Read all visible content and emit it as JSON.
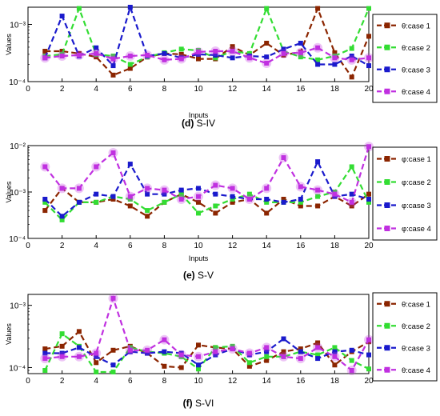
{
  "colors": {
    "case1": "#8b2500",
    "case2": "#33dd33",
    "case3": "#1a1acc",
    "case4": "#c030e0"
  },
  "chart_data": [
    {
      "type": "line",
      "caption_letter": "(d)",
      "caption_text": "S-IV",
      "xlabel": "Inputs",
      "ylabel": "Values",
      "yscale": "log",
      "ylim": [
        0.0001,
        0.002
      ],
      "xlim": [
        0,
        20
      ],
      "x_ticks": [
        0,
        2,
        4,
        6,
        8,
        10,
        12,
        14,
        16,
        18,
        20
      ],
      "y_ticks": [
        {
          "value": 0.001,
          "label": "10⁻³"
        },
        {
          "value": 0.0001,
          "label": "10⁻⁴"
        }
      ],
      "legend_position": "right",
      "x": [
        1,
        2,
        3,
        4,
        5,
        6,
        7,
        8,
        9,
        10,
        11,
        12,
        13,
        14,
        15,
        16,
        17,
        18,
        19,
        20
      ],
      "series": [
        {
          "name": "θ:case 1",
          "color_key": "case1",
          "values": [
            0.00034,
            0.00034,
            0.00031,
            0.00027,
            0.00013,
            0.00017,
            0.00027,
            0.00031,
            0.0003,
            0.00025,
            0.00025,
            0.00041,
            0.00029,
            0.00047,
            0.00029,
            0.00033,
            0.0019,
            0.00032,
            0.00012,
            0.00062
          ]
        },
        {
          "name": "θ:case 2",
          "color_key": "case2",
          "values": [
            0.00028,
            0.0003,
            0.0019,
            0.0003,
            0.00028,
            0.0002,
            0.00027,
            0.00032,
            0.00037,
            0.00035,
            0.00026,
            0.00034,
            0.00031,
            0.0019,
            0.00034,
            0.00027,
            0.00024,
            0.00028,
            0.00038,
            0.0019
          ]
        },
        {
          "name": "θ:case 3",
          "color_key": "case3",
          "values": [
            0.00026,
            0.0014,
            0.00028,
            0.00039,
            0.00019,
            0.002,
            0.00028,
            0.00031,
            0.00026,
            0.0003,
            0.00029,
            0.00026,
            0.00028,
            0.00027,
            0.00037,
            0.00047,
            0.0002,
            0.0002,
            0.00028,
            0.00019
          ]
        },
        {
          "name": "θ:case 4",
          "color_key": "case4",
          "values": [
            0.00026,
            0.00028,
            0.00029,
            0.00031,
            0.00025,
            0.00028,
            0.00029,
            0.00024,
            0.00025,
            0.00033,
            0.00034,
            0.00034,
            0.00026,
            0.00021,
            0.00031,
            0.00032,
            0.00039,
            0.00026,
            0.00024,
            0.00026
          ]
        }
      ]
    },
    {
      "type": "line",
      "caption_letter": "(e)",
      "caption_text": "S-V",
      "xlabel": "Inputs",
      "ylabel": "Values",
      "yscale": "log",
      "ylim": [
        0.0001,
        0.01
      ],
      "xlim": [
        0,
        20
      ],
      "x_ticks": [
        0,
        2,
        4,
        6,
        8,
        10,
        12,
        14,
        16,
        18,
        20
      ],
      "y_ticks": [
        {
          "value": 0.01,
          "label": "10⁻²"
        },
        {
          "value": 0.001,
          "label": "10⁻³"
        },
        {
          "value": 0.0001,
          "label": "10⁻⁴"
        }
      ],
      "legend_position": "right",
      "x": [
        1,
        2,
        3,
        4,
        5,
        6,
        7,
        8,
        9,
        10,
        11,
        12,
        13,
        14,
        15,
        16,
        17,
        18,
        19,
        20
      ],
      "series": [
        {
          "name": "φ:case 1",
          "color_key": "case1",
          "values": [
            0.0004,
            0.0012,
            0.0006,
            0.0006,
            0.0007,
            0.0005,
            0.0003,
            0.0006,
            0.0009,
            0.0006,
            0.00035,
            0.0006,
            0.0007,
            0.00035,
            0.0007,
            0.0005,
            0.0005,
            0.0008,
            0.0005,
            0.0009
          ]
        },
        {
          "name": "φ:case 2",
          "color_key": "case2",
          "values": [
            0.0006,
            0.00025,
            0.0006,
            0.0006,
            0.0008,
            0.0007,
            0.0004,
            0.0006,
            0.0009,
            0.00035,
            0.0005,
            0.0007,
            0.0009,
            0.0006,
            0.0006,
            0.0006,
            0.0008,
            0.001,
            0.0035,
            0.0006
          ]
        },
        {
          "name": "φ:case 3",
          "color_key": "case3",
          "values": [
            0.0007,
            0.0003,
            0.0006,
            0.0009,
            0.0008,
            0.004,
            0.0009,
            0.0009,
            0.0011,
            0.0012,
            0.0009,
            0.0008,
            0.0007,
            0.0007,
            0.0006,
            0.0007,
            0.0045,
            0.0008,
            0.0009,
            0.0007
          ]
        },
        {
          "name": "φ:case 4",
          "color_key": "case4",
          "values": [
            0.0035,
            0.0012,
            0.0012,
            0.0035,
            0.007,
            0.0008,
            0.0012,
            0.0011,
            0.0007,
            0.0008,
            0.0014,
            0.0012,
            0.0007,
            0.0012,
            0.0055,
            0.0013,
            0.0011,
            0.0009,
            0.0006,
            0.0095
          ]
        }
      ]
    },
    {
      "type": "line",
      "caption_letter": "(f)",
      "caption_text": "S-VI",
      "xlabel": "",
      "ylabel": "Values",
      "yscale": "log",
      "ylim": [
        8e-05,
        0.0015
      ],
      "xlim": [
        0,
        20
      ],
      "x_ticks": [
        0,
        2,
        4,
        6,
        8,
        10,
        12,
        14,
        16,
        18,
        20
      ],
      "y_ticks": [
        {
          "value": 0.001,
          "label": "10⁻³"
        },
        {
          "value": 0.0001,
          "label": "10⁻⁴"
        }
      ],
      "legend_position": "right",
      "x": [
        1,
        2,
        3,
        4,
        5,
        6,
        7,
        8,
        9,
        10,
        11,
        12,
        13,
        14,
        15,
        16,
        17,
        18,
        19,
        20
      ],
      "series": [
        {
          "name": "θ:case 1",
          "color_key": "case1",
          "values": [
            0.0002,
            0.00022,
            0.00038,
            0.00012,
            0.00019,
            0.00022,
            0.00017,
            0.000105,
            0.0001,
            0.00023,
            0.00021,
            0.0002,
            0.000105,
            0.00013,
            0.00018,
            0.0002,
            0.00025,
            0.00011,
            0.00018,
            0.00026
          ]
        },
        {
          "name": "θ:case 2",
          "color_key": "case2",
          "values": [
            9e-05,
            0.00035,
            0.00022,
            8.5e-05,
            8.5e-05,
            0.00021,
            0.00018,
            0.00017,
            0.00015,
            9.5e-05,
            0.00021,
            0.00022,
            0.00012,
            0.00015,
            0.00015,
            0.00018,
            0.00016,
            0.00021,
            0.00013,
            9.5e-05
          ]
        },
        {
          "name": "θ:case 3",
          "color_key": "case3",
          "values": [
            0.00017,
            0.00017,
            0.00021,
            0.00015,
            0.00011,
            0.00018,
            0.00017,
            0.00018,
            0.00017,
            0.00011,
            0.00016,
            0.0002,
            0.00016,
            0.00018,
            0.00029,
            0.00018,
            0.00014,
            0.00018,
            0.00019,
            0.00016
          ]
        },
        {
          "name": "θ:case 4",
          "color_key": "case4",
          "values": [
            0.00014,
            0.00015,
            0.00015,
            0.00017,
            0.0013,
            0.00019,
            0.00019,
            0.00028,
            0.00016,
            0.00015,
            0.00018,
            0.0002,
            0.00017,
            0.00021,
            0.00015,
            0.00014,
            0.00021,
            0.00015,
            9e-05,
            0.00028
          ]
        }
      ]
    }
  ]
}
